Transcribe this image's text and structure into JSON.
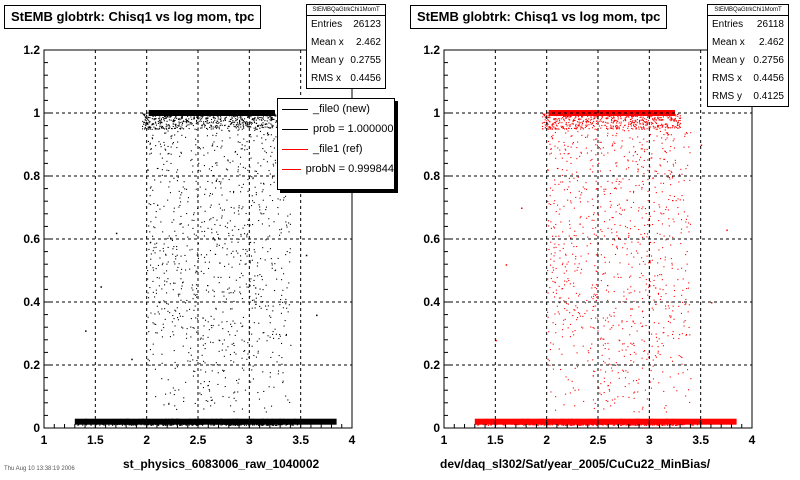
{
  "footer_text": "Thu Aug 10 13:38:19 2006",
  "chart_data": [
    {
      "type": "scatter",
      "title": "StEMB globtrk: Chisq1 vs log mom, tpc",
      "stats_header": "StEMBQaGtrkChi1MomT",
      "stats": [
        {
          "label": "Entries",
          "value": "26123"
        },
        {
          "label": "Mean x",
          "value": "2.462"
        },
        {
          "label": "Mean y",
          "value": "0.2755"
        },
        {
          "label": "RMS x",
          "value": "0.4456"
        }
      ],
      "legend": [
        {
          "label": "_file0 (new)",
          "color": "#000000"
        },
        {
          "label": "prob = 1.000000",
          "color": "#000000"
        },
        {
          "label": "_file1 (ref)",
          "color": "#ff0000"
        },
        {
          "label": "probN = 0.999844",
          "color": "#ff0000"
        }
      ],
      "xlabel": "st_physics_6083006_raw_1040002",
      "ylabel": "",
      "xlim": [
        1,
        4
      ],
      "ylim": [
        0,
        1.2
      ],
      "x_ticks": [
        "1",
        "1.5",
        "2",
        "2.5",
        "3",
        "3.5",
        "4"
      ],
      "y_ticks": [
        "0",
        "0.2",
        "0.4",
        "0.6",
        "0.8",
        "1",
        "1.2"
      ],
      "grid": true,
      "marker_color": "#000000",
      "point_count": 26123,
      "bands": [
        {
          "y": 0.02
        },
        {
          "y": 1.0
        }
      ],
      "x_core_range": [
        2.0,
        3.0
      ],
      "x_full_range": [
        1.3,
        3.5
      ],
      "outliers": [
        {
          "x": 1.4,
          "y": 0.31
        },
        {
          "x": 1.55,
          "y": 0.45
        },
        {
          "x": 1.7,
          "y": 0.62
        },
        {
          "x": 1.85,
          "y": 0.22
        },
        {
          "x": 3.55,
          "y": 0.55
        },
        {
          "x": 3.7,
          "y": 0.84
        },
        {
          "x": 3.65,
          "y": 0.36
        }
      ]
    },
    {
      "type": "scatter",
      "title": "StEMB globtrk: Chisq1 vs log mom, tpc",
      "stats_header": "StEMBQaGtrkChi1MomT",
      "stats": [
        {
          "label": "Entries",
          "value": "26118"
        },
        {
          "label": "Mean x",
          "value": "2.462"
        },
        {
          "label": "Mean y",
          "value": "0.2756"
        },
        {
          "label": "RMS x",
          "value": "0.4456"
        },
        {
          "label": "RMS y",
          "value": "0.4125"
        }
      ],
      "xlabel": "dev/daq_sl302/Sat/year_2005/CuCu22_MinBias/",
      "ylabel": "",
      "xlim": [
        1,
        4
      ],
      "ylim": [
        0,
        1.2
      ],
      "x_ticks": [
        "1",
        "1.5",
        "2",
        "2.5",
        "3",
        "3.5",
        "4"
      ],
      "y_ticks": [
        "0",
        "0.2",
        "0.4",
        "0.6",
        "0.8",
        "1",
        "1.2"
      ],
      "grid": true,
      "marker_color": "#ff0000",
      "point_count": 26118,
      "bands": [
        {
          "y": 0.02
        },
        {
          "y": 1.0
        }
      ],
      "x_core_range": [
        2.0,
        3.0
      ],
      "x_full_range": [
        1.3,
        3.5
      ],
      "outliers": [
        {
          "x": 1.5,
          "y": 0.28
        },
        {
          "x": 1.6,
          "y": 0.52
        },
        {
          "x": 1.75,
          "y": 0.7
        },
        {
          "x": 3.6,
          "y": 0.4
        },
        {
          "x": 3.75,
          "y": 0.63
        },
        {
          "x": 3.5,
          "y": 0.9
        }
      ]
    }
  ]
}
